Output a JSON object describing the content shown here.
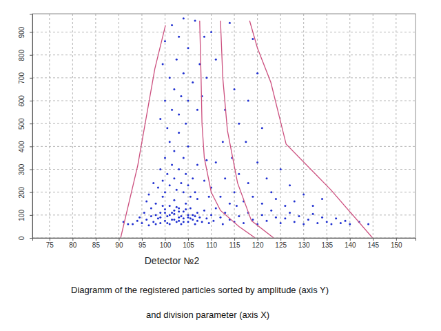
{
  "chart_data": {
    "type": "scatter",
    "x_label": "Detector №2",
    "annotations": [
      "Diagramm of the registered particles sorted by amplitude (axis Y)",
      "and division parameter (axis X)"
    ],
    "xlim": [
      71.3,
      154.2
    ],
    "ylim": [
      0,
      980
    ],
    "xticks": [
      75,
      80,
      85,
      90,
      95,
      100,
      105,
      110,
      115,
      120,
      125,
      130,
      135,
      140,
      145,
      150
    ],
    "yticks": [
      0,
      100,
      200,
      300,
      400,
      500,
      600,
      700,
      800,
      900
    ],
    "grid": true,
    "series": [
      {
        "type": "scatter",
        "color": "#1f2fd0",
        "marker": "point",
        "x": [
          93,
          94,
          94.5,
          95,
          95.5,
          96,
          96.5,
          97,
          97,
          97.5,
          98,
          98,
          98.5,
          99,
          99,
          99.5,
          100,
          100,
          100.5,
          101,
          101,
          101.5,
          102,
          102,
          102.5,
          103,
          103,
          103.5,
          104,
          104,
          104.5,
          105,
          105,
          105.5,
          106,
          106.5,
          107,
          107.5,
          108,
          108.5,
          109,
          109.5,
          110,
          110.5,
          111,
          112,
          112.5,
          113,
          114,
          115,
          115.5,
          116,
          117,
          118,
          119,
          120,
          121,
          122,
          123,
          124,
          125,
          126,
          127,
          128,
          129,
          130,
          131,
          132,
          133,
          134,
          135,
          136,
          137,
          138,
          139,
          140,
          142,
          144,
          91,
          92,
          98.5,
          99,
          99.5,
          100,
          100,
          100.5,
          101,
          101,
          101.5,
          102,
          102,
          102.5,
          103,
          103,
          103.5,
          104,
          104,
          104.5,
          105,
          105,
          105.5,
          106,
          106.5,
          107,
          107,
          97.5,
          96.5,
          96,
          99,
          100,
          100.5,
          101,
          101.5,
          102,
          102.5,
          103,
          103,
          103.5,
          104,
          104.5,
          105,
          105,
          106,
          106.5,
          107,
          107.5,
          108,
          100,
          101.5,
          104,
          99.5,
          108.5,
          109,
          110,
          111,
          112,
          112.5,
          113,
          114,
          114.5,
          115,
          116,
          117,
          117.5,
          118,
          119,
          120,
          121,
          122,
          123,
          124,
          125,
          126,
          127,
          128,
          130,
          132,
          134,
          113,
          115,
          111,
          116,
          118,
          120,
          121,
          110,
          119,
          114,
          108.5,
          109.5,
          109,
          99,
          100,
          101,
          102,
          103,
          104,
          105,
          106,
          100.5,
          102.5,
          103.5,
          104.5,
          101.5,
          103,
          105.5,
          98,
          99.5,
          106.5,
          107,
          102
        ],
        "values": [
          60,
          75,
          90,
          65,
          110,
          80,
          55,
          95,
          130,
          70,
          60,
          150,
          85,
          110,
          65,
          180,
          75,
          125,
          95,
          60,
          140,
          80,
          105,
          165,
          70,
          90,
          130,
          60,
          115,
          85,
          150,
          70,
          100,
          130,
          80,
          60,
          110,
          90,
          70,
          120,
          85,
          65,
          100,
          75,
          130,
          90,
          60,
          110,
          80,
          70,
          140,
          95,
          65,
          110,
          80,
          60,
          100,
          75,
          120,
          90,
          65,
          85,
          110,
          70,
          95,
          60,
          80,
          105,
          65,
          90,
          70,
          60,
          85,
          65,
          75,
          60,
          70,
          60,
          70,
          60,
          220,
          300,
          250,
          200,
          350,
          280,
          230,
          420,
          320,
          260,
          380,
          210,
          300,
          460,
          240,
          350,
          200,
          280,
          230,
          400,
          180,
          260,
          200,
          170,
          320,
          240,
          190,
          160,
          520,
          600,
          480,
          700,
          560,
          650,
          780,
          540,
          880,
          620,
          720,
          500,
          830,
          600,
          680,
          950,
          560,
          760,
          620,
          860,
          930,
          960,
          760,
          880,
          700,
          220,
          330,
          180,
          420,
          260,
          150,
          350,
          200,
          280,
          160,
          420,
          240,
          180,
          330,
          150,
          260,
          200,
          170,
          300,
          140,
          230,
          160,
          190,
          140,
          170,
          560,
          650,
          780,
          500,
          600,
          720,
          480,
          900,
          870,
          940,
          250,
          180,
          340,
          90,
          110,
          100,
          80,
          115,
          70,
          90,
          100,
          65,
          135,
          95,
          125,
          110,
          75,
          85,
          100,
          140,
          95,
          75,
          120
        ]
      },
      {
        "type": "line",
        "color": "#cc4f7e",
        "line_style": "solid",
        "x": [
          90.4,
          94.1,
          97.8,
          100.1
        ],
        "values": [
          0,
          317,
          740,
          930
        ]
      },
      {
        "type": "line",
        "color": "#cc4f7e",
        "line_style": "solid",
        "x": [
          119.5,
          116,
          112,
          110,
          108.5,
          108,
          107.8,
          107.5
        ],
        "values": [
          0,
          50,
          120,
          200,
          350,
          500,
          700,
          950
        ]
      },
      {
        "type": "line",
        "color": "#cc4f7e",
        "line_style": "solid",
        "x": [
          123.5,
          118.7,
          115.7,
          113.5,
          112.5,
          112
        ],
        "values": [
          0,
          75,
          240,
          470,
          700,
          950
        ]
      },
      {
        "type": "line",
        "color": "#cc4f7e",
        "line_style": "solid",
        "x": [
          144.9,
          135.9,
          126.2,
          122.9,
          120,
          118.3
        ],
        "values": [
          0,
          210,
          410,
          680,
          830,
          950
        ]
      }
    ]
  }
}
